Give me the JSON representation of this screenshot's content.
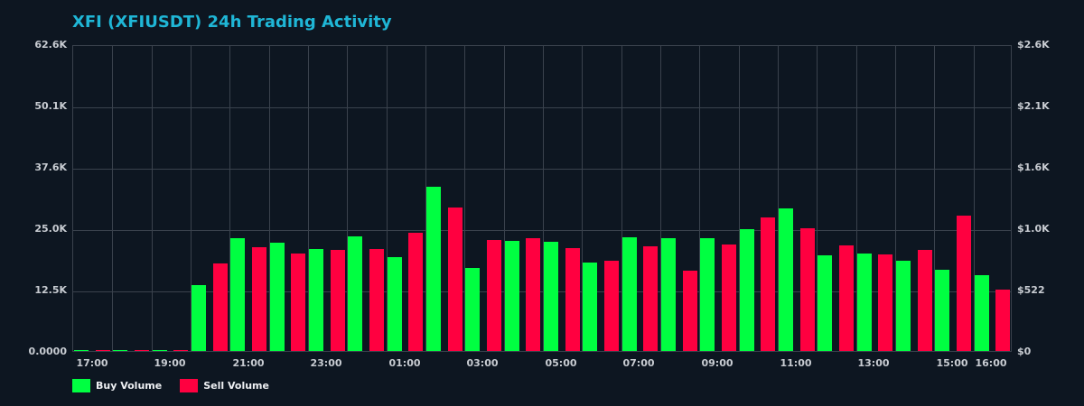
{
  "chart_data": {
    "type": "bar",
    "title": "XFI (XFIUSDT) 24h Trading Activity",
    "xlabel": "",
    "ylabel": "",
    "ylim": [
      0,
      62600
    ],
    "y2lim": [
      0,
      2600
    ],
    "grid": true,
    "legend_position": "bottom-left",
    "left_ticks": [
      "0.0000",
      "12.5K",
      "25.0K",
      "37.6K",
      "50.1K",
      "62.6K"
    ],
    "right_ticks": [
      "$0",
      "$522",
      "$1.0K",
      "$1.6K",
      "$2.1K",
      "$2.6K"
    ],
    "x_tick_labels": [
      "17:00",
      "19:00",
      "21:00",
      "23:00",
      "01:00",
      "03:00",
      "05:00",
      "07:00",
      "09:00",
      "11:00",
      "13:00",
      "15:00",
      "16:00"
    ],
    "categories": [
      "17:00",
      "18:00",
      "19:00",
      "20:00",
      "21:00",
      "22:00",
      "23:00",
      "00:00",
      "01:00",
      "02:00",
      "03:00",
      "04:00",
      "05:00",
      "06:00",
      "07:00",
      "08:00",
      "09:00",
      "10:00",
      "11:00",
      "12:00",
      "13:00",
      "14:00",
      "15:00",
      "16:00"
    ],
    "series": [
      {
        "name": "Buy Volume",
        "color": "#00ff41",
        "values": [
          150,
          150,
          150,
          13400,
          23000,
          22100,
          20800,
          23400,
          19100,
          33500,
          16900,
          22500,
          22300,
          18000,
          23200,
          23000,
          23000,
          24900,
          29100,
          19500,
          19900,
          18400,
          16600,
          15500
        ]
      },
      {
        "name": "Sell Volume",
        "color": "#ff0040",
        "values": [
          150,
          150,
          150,
          17900,
          21200,
          19900,
          20600,
          20800,
          24100,
          29300,
          22600,
          23000,
          21000,
          18400,
          21400,
          16400,
          21700,
          27200,
          25000,
          21500,
          19700,
          20600,
          27600,
          12500
        ]
      }
    ]
  },
  "legend": {
    "buy_label": "Buy Volume",
    "sell_label": "Sell Volume"
  }
}
